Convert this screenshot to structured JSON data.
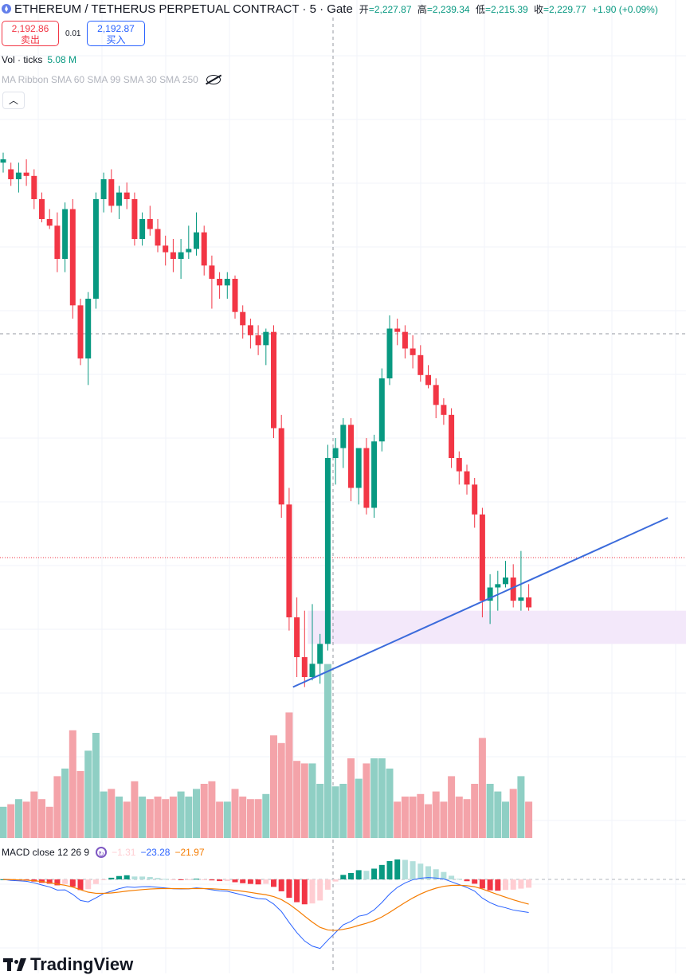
{
  "header": {
    "symbol": "ETHEREUM / TETHERUS PERPETUAL CONTRACT · 5 · Gate",
    "open_label": "开",
    "open": "=2,227.87",
    "high_label": "高",
    "high": "=2,239.34",
    "low_label": "低",
    "low": "=2,215.39",
    "close_label": "收",
    "close": "=2,229.77",
    "change": "+1.90 (+0.09%)"
  },
  "trade": {
    "sell_price": "2,192.86",
    "sell_label": "卖出",
    "spread": "0.01",
    "buy_price": "2,192.87",
    "buy_label": "买入"
  },
  "volume_legend": {
    "label": "Vol · ticks",
    "value": "5.08 M"
  },
  "ma_legend": {
    "label": "MA Ribbon SMA 60 SMA 99 SMA 30 SMA 250"
  },
  "collapse_icon": "chevron-up-icon",
  "macd_legend": {
    "label": "MACD close 12 26 9",
    "hist": "−1.31",
    "macd": "−23.28",
    "signal": "−21.97"
  },
  "brand": {
    "name": "TradingView"
  },
  "colors": {
    "up": "#089981",
    "down": "#f23645",
    "up_vol": "#8fcfc4",
    "down_vol": "#f4a3a9",
    "trendline": "#3b6bdb",
    "zone": "#f3e8fa",
    "macd": "#2962ff",
    "signal": "#f57c00"
  },
  "chart_data": {
    "type": "candlestick",
    "candles_ohlc": [
      [
        2247,
        2250,
        2244,
        2248
      ],
      [
        2245,
        2247,
        2240,
        2242
      ],
      [
        2242,
        2247,
        2238,
        2244
      ],
      [
        2244,
        2248,
        2240,
        2243
      ],
      [
        2243,
        2245,
        2233,
        2236
      ],
      [
        2236,
        2238,
        2229,
        2230
      ],
      [
        2230,
        2233,
        2227,
        2228
      ],
      [
        2228,
        2232,
        2214,
        2218
      ],
      [
        2218,
        2235,
        2214,
        2233
      ],
      [
        2233,
        2236,
        2200,
        2204
      ],
      [
        2204,
        2206,
        2186,
        2188
      ],
      [
        2188,
        2208,
        2180,
        2206
      ],
      [
        2206,
        2238,
        2203,
        2236
      ],
      [
        2236,
        2244,
        2232,
        2242
      ],
      [
        2242,
        2245,
        2232,
        2234
      ],
      [
        2234,
        2240,
        2230,
        2238
      ],
      [
        2238,
        2241,
        2233,
        2236
      ],
      [
        2236,
        2238,
        2222,
        2224
      ],
      [
        2224,
        2232,
        2222,
        2230
      ],
      [
        2230,
        2234,
        2225,
        2227
      ],
      [
        2227,
        2230,
        2220,
        2222
      ],
      [
        2222,
        2225,
        2216,
        2220
      ],
      [
        2220,
        2224,
        2214,
        2218
      ],
      [
        2218,
        2224,
        2212,
        2220
      ],
      [
        2220,
        2228,
        2218,
        2221
      ],
      [
        2221,
        2232,
        2219,
        2226
      ],
      [
        2226,
        2228,
        2213,
        2216
      ],
      [
        2216,
        2219,
        2203,
        2212
      ],
      [
        2212,
        2214,
        2206,
        2210
      ],
      [
        2210,
        2214,
        2206,
        2212
      ],
      [
        2212,
        2213,
        2200,
        2202
      ],
      [
        2202,
        2204,
        2194,
        2198
      ],
      [
        2198,
        2200,
        2191,
        2195
      ],
      [
        2195,
        2198,
        2189,
        2192
      ],
      [
        2192,
        2197,
        2186,
        2196
      ],
      [
        2196,
        2198,
        2164,
        2167
      ],
      [
        2167,
        2171,
        2140,
        2144
      ],
      [
        2144,
        2149,
        2106,
        2110
      ],
      [
        2110,
        2116,
        2092,
        2098
      ],
      [
        2098,
        2112,
        2089,
        2092
      ],
      [
        2092,
        2114,
        2091,
        2096
      ],
      [
        2096,
        2105,
        2090,
        2102
      ],
      [
        2102,
        2162,
        2100,
        2158
      ],
      [
        2158,
        2164,
        2150,
        2161
      ],
      [
        2161,
        2170,
        2155,
        2168
      ],
      [
        2168,
        2170,
        2145,
        2149
      ],
      [
        2149,
        2161,
        2144,
        2161
      ],
      [
        2161,
        2164,
        2141,
        2143
      ],
      [
        2143,
        2165,
        2140,
        2163
      ],
      [
        2163,
        2185,
        2160,
        2182
      ],
      [
        2182,
        2201,
        2180,
        2197
      ],
      [
        2197,
        2200,
        2192,
        2196
      ],
      [
        2196,
        2198,
        2188,
        2191
      ],
      [
        2191,
        2195,
        2185,
        2189
      ],
      [
        2189,
        2192,
        2181,
        2183
      ],
      [
        2183,
        2186,
        2179,
        2180
      ],
      [
        2180,
        2182,
        2170,
        2174
      ],
      [
        2174,
        2176,
        2168,
        2171
      ],
      [
        2171,
        2173,
        2155,
        2158
      ],
      [
        2158,
        2160,
        2150,
        2154
      ],
      [
        2154,
        2156,
        2147,
        2150
      ],
      [
        2150,
        2152,
        2137,
        2141
      ],
      [
        2141,
        2143,
        2110,
        2115
      ],
      [
        2115,
        2123,
        2108,
        2119
      ],
      [
        2119,
        2124,
        2112,
        2120
      ],
      [
        2120,
        2127,
        2119,
        2122
      ],
      [
        2122,
        2126,
        2113,
        2115
      ],
      [
        2115,
        2130,
        2112,
        2116
      ],
      [
        2116,
        2120,
        2112,
        2113
      ]
    ],
    "y_range": [
      2080,
      2260
    ],
    "trendline": [
      [
        37.5,
        2089
      ],
      [
        86,
        2140
      ]
    ],
    "support_zone": [
      2102,
      2112
    ],
    "notes": "Approximate values estimated from the screenshot; y-axis labels are not printed."
  }
}
